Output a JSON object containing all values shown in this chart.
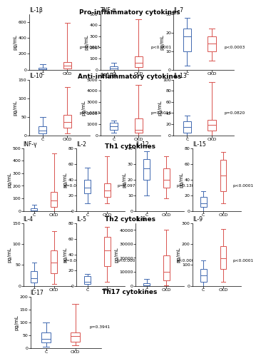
{
  "sections": [
    {
      "title": "Pro-inflammatory cytokines",
      "plots": [
        {
          "label": "IL-1β",
          "ylabel": "pg/mL",
          "ylim": [
            0,
            700
          ],
          "yticks": [
            0,
            200,
            400,
            600
          ],
          "C": {
            "whislo": 0,
            "q1": 0,
            "med": 8,
            "q3": 25,
            "whishi": 70
          },
          "CKD": {
            "whislo": 0,
            "q1": 10,
            "med": 50,
            "q3": 90,
            "whishi": 590
          },
          "pval": "p=0.0915"
        },
        {
          "label": "TNF-α",
          "ylabel": "pg/mL",
          "ylim": [
            0,
            500
          ],
          "yticks": [
            0,
            100,
            200,
            300,
            400,
            500
          ],
          "C": {
            "whislo": 0,
            "q1": 0,
            "med": 10,
            "q3": 30,
            "whishi": 60
          },
          "CKD": {
            "whislo": 0,
            "q1": 20,
            "med": 60,
            "q3": 120,
            "whishi": 450
          },
          "pval": "p<0.0001"
        },
        {
          "label": "IL-7",
          "ylabel": "pg/mL",
          "ylim": [
            0,
            30
          ],
          "yticks": [
            0,
            10,
            20,
            30
          ],
          "C": {
            "whislo": 2,
            "q1": 10,
            "med": 18,
            "q3": 22,
            "whishi": 28
          },
          "CKD": {
            "whislo": 5,
            "q1": 10,
            "med": 14,
            "q3": 18,
            "whishi": 22
          },
          "pval": "p<0.0003"
        }
      ]
    },
    {
      "title": "Anti-inflammatory cytokines",
      "plots": [
        {
          "label": "IL-10",
          "ylabel": "pg/mL",
          "ylim": [
            0,
            150
          ],
          "yticks": [
            0,
            50,
            100,
            150
          ],
          "C": {
            "whislo": 0,
            "q1": 5,
            "med": 12,
            "q3": 25,
            "whishi": 50
          },
          "CKD": {
            "whislo": 5,
            "q1": 20,
            "med": 35,
            "q3": 55,
            "whishi": 130
          },
          "pval": "p=0.0393"
        },
        {
          "label": "IL-1RA",
          "ylabel": "pg/mL",
          "ylim": [
            0,
            5000
          ],
          "yticks": [
            0,
            1000,
            2000,
            3000,
            4000,
            5000
          ],
          "C": {
            "whislo": 200,
            "q1": 500,
            "med": 800,
            "q3": 1100,
            "whishi": 1300
          },
          "CKD": {
            "whislo": 0,
            "q1": 200,
            "med": 500,
            "q3": 1500,
            "whishi": 4500
          },
          "pval": "p=0.5016"
        },
        {
          "label": "IL-13",
          "ylabel": "pg/mL",
          "ylim": [
            0,
            100
          ],
          "yticks": [
            0,
            20,
            40,
            60,
            80,
            100
          ],
          "C": {
            "whislo": 0,
            "q1": 5,
            "med": 15,
            "q3": 25,
            "whishi": 35
          },
          "CKD": {
            "whislo": 0,
            "q1": 8,
            "med": 18,
            "q3": 28,
            "whishi": 95
          },
          "pval": "p=0.0820"
        }
      ]
    },
    {
      "title": "Th1 cytokines",
      "plots": [
        {
          "label": "INF-γ",
          "ylabel": "pg/mL",
          "ylim": [
            0,
            500
          ],
          "yticks": [
            0,
            100,
            200,
            300,
            400,
            500
          ],
          "C": {
            "whislo": 0,
            "q1": 0,
            "med": 5,
            "q3": 20,
            "whishi": 50
          },
          "CKD": {
            "whislo": 0,
            "q1": 30,
            "med": 80,
            "q3": 150,
            "whishi": 460
          },
          "pval": "p=0.0008"
        },
        {
          "label": "IL-2",
          "ylabel": "pg/mL",
          "ylim": [
            0,
            80
          ],
          "yticks": [
            0,
            20,
            40,
            60,
            80
          ],
          "C": {
            "whislo": 10,
            "q1": 22,
            "med": 30,
            "q3": 40,
            "whishi": 55
          },
          "CKD": {
            "whislo": 10,
            "q1": 18,
            "med": 26,
            "q3": 35,
            "whishi": 70
          },
          "pval": "p=0.0974"
        },
        {
          "label": "IL-12",
          "ylabel": "pg/mL",
          "ylim": [
            0,
            40
          ],
          "yticks": [
            0,
            10,
            20,
            30,
            40
          ],
          "C": {
            "whislo": 10,
            "q1": 20,
            "med": 27,
            "q3": 33,
            "whishi": 38
          },
          "CKD": {
            "whislo": 8,
            "q1": 15,
            "med": 20,
            "q3": 27,
            "whishi": 35
          },
          "pval": "p=0.1307"
        },
        {
          "label": "IL-15",
          "ylabel": "pg/mL",
          "ylim": [
            0,
            80
          ],
          "yticks": [
            0,
            20,
            40,
            60,
            80
          ],
          "C": {
            "whislo": 0,
            "q1": 5,
            "med": 10,
            "q3": 18,
            "whishi": 25
          },
          "CKD": {
            "whislo": 10,
            "q1": 25,
            "med": 45,
            "q3": 65,
            "whishi": 75
          },
          "pval": "p<0.0001"
        }
      ]
    },
    {
      "title": "Th2 cytokines",
      "plots": [
        {
          "label": "IL-4",
          "ylabel": "pg/mL",
          "ylim": [
            0,
            150
          ],
          "yticks": [
            0,
            50,
            100,
            150
          ],
          "C": {
            "whislo": 0,
            "q1": 8,
            "med": 18,
            "q3": 35,
            "whishi": 55
          },
          "CKD": {
            "whislo": 5,
            "q1": 30,
            "med": 55,
            "q3": 85,
            "whishi": 130
          },
          "pval": "p=0.0001"
        },
        {
          "label": "IL-5",
          "ylabel": "pg/mL",
          "ylim": [
            0,
            80
          ],
          "yticks": [
            0,
            20,
            40,
            60,
            80
          ],
          "C": {
            "whislo": 0,
            "q1": 2,
            "med": 5,
            "q3": 12,
            "whishi": 15
          },
          "CKD": {
            "whislo": 5,
            "q1": 25,
            "med": 45,
            "q3": 62,
            "whishi": 75
          },
          "pval": "p<0.0001"
        },
        {
          "label": "IL-6",
          "ylabel": "pg/mL",
          "ylim": [
            0,
            45000
          ],
          "yticks": [
            0,
            10000,
            20000,
            30000,
            40000
          ],
          "C": {
            "whislo": 0,
            "q1": 100,
            "med": 500,
            "q3": 2000,
            "whishi": 5000
          },
          "CKD": {
            "whislo": 500,
            "q1": 4000,
            "med": 10000,
            "q3": 22000,
            "whishi": 40000
          },
          "pval": "p<0.0001"
        },
        {
          "label": "IL-9",
          "ylabel": "pg/mL",
          "ylim": [
            0,
            300
          ],
          "yticks": [
            0,
            100,
            200,
            300
          ],
          "C": {
            "whislo": 0,
            "q1": 20,
            "med": 50,
            "q3": 80,
            "whishi": 120
          },
          "CKD": {
            "whislo": 20,
            "q1": 80,
            "med": 130,
            "q3": 190,
            "whishi": 270
          },
          "pval": "p<0.0001"
        }
      ]
    },
    {
      "title": "Th17 cytokines",
      "plots": [
        {
          "label": "IL-17",
          "ylabel": "pg/mL",
          "ylim": [
            0,
            200
          ],
          "yticks": [
            0,
            50,
            100,
            150,
            200
          ],
          "C": {
            "whislo": 5,
            "q1": 20,
            "med": 35,
            "q3": 60,
            "whishi": 100
          },
          "CKD": {
            "whislo": 10,
            "q1": 25,
            "med": 45,
            "q3": 60,
            "whishi": 170
          },
          "pval": "p=0.3941"
        }
      ]
    }
  ],
  "color_C": "#4169B0",
  "color_CKD": "#D9534F",
  "bg_color": "#FFFFFF",
  "section_title_fontsize": 6.5,
  "cytokine_label_fontsize": 5.5,
  "ylabel_fontsize": 5.0,
  "tick_fontsize": 4.5,
  "pval_fontsize": 4.2
}
